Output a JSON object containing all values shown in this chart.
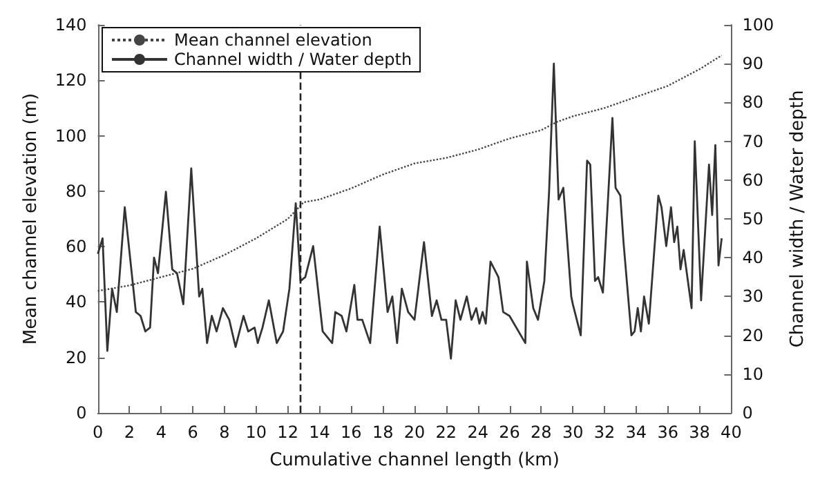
{
  "chart_data": {
    "type": "line",
    "xlabel": "Cumulative channel length (km)",
    "ylabel": "Mean channel elevation (m)",
    "y2label": "Channel width / Water depth",
    "xlim": [
      0,
      40
    ],
    "xticks": [
      0,
      2,
      4,
      6,
      8,
      10,
      12,
      14,
      16,
      18,
      20,
      22,
      24,
      26,
      28,
      30,
      32,
      34,
      36,
      38,
      40
    ],
    "ylim": [
      0,
      140
    ],
    "yticks": [
      0,
      20,
      40,
      60,
      80,
      100,
      120,
      140
    ],
    "y2lim": [
      0,
      100
    ],
    "y2ticks": [
      0,
      10,
      20,
      30,
      40,
      50,
      60,
      70,
      80,
      90,
      100
    ],
    "grid": false,
    "legend": "top left",
    "marker": "none",
    "ref_lines": [
      {
        "axis": "x",
        "value": 12.8,
        "line_style": "dashed",
        "color": "#222222"
      }
    ],
    "series": [
      {
        "name": "Mean channel elevation",
        "color": "#444444",
        "line_style": "dotted",
        "x": [
          0,
          2,
          4,
          6,
          8,
          10,
          12,
          13,
          14,
          16,
          18,
          20,
          22,
          24,
          26,
          28,
          29,
          30,
          32,
          34,
          36,
          38,
          39.4
        ],
        "values": [
          44,
          46,
          49,
          52,
          57,
          63,
          70,
          76,
          77,
          81,
          86,
          90,
          92,
          95,
          99,
          102,
          105,
          107,
          110,
          114,
          118,
          124,
          129
        ]
      },
      {
        "name": "Channel width / Water depth",
        "color": "#333333",
        "line_style": "solid",
        "axis": "y2",
        "x": [
          0,
          0.3,
          0.6,
          0.9,
          1.2,
          1.7,
          2.4,
          2.7,
          3.0,
          3.3,
          3.55,
          3.8,
          4.3,
          4.7,
          5.0,
          5.4,
          5.9,
          6.4,
          6.6,
          6.9,
          7.2,
          7.5,
          7.9,
          8.3,
          8.7,
          9.2,
          9.5,
          9.9,
          10.1,
          10.4,
          10.8,
          11.3,
          11.7,
          12.1,
          12.5,
          12.8,
          13.1,
          13.6,
          14.2,
          14.8,
          15.0,
          15.4,
          15.7,
          16.2,
          16.4,
          16.7,
          17.2,
          17.8,
          18.3,
          18.6,
          18.9,
          19.2,
          19.6,
          20.0,
          20.6,
          21.1,
          21.4,
          21.7,
          22.0,
          22.3,
          22.6,
          22.9,
          23.3,
          23.6,
          23.9,
          24.1,
          24.3,
          24.5,
          24.8,
          25.3,
          25.6,
          26.0,
          27.0,
          27.1,
          27.5,
          27.8,
          28.2,
          28.5,
          28.8,
          29.1,
          29.4,
          29.9,
          30.0,
          30.5,
          30.9,
          31.1,
          31.4,
          31.6,
          31.9,
          32.5,
          32.7,
          33.0,
          33.2,
          33.7,
          33.9,
          34.1,
          34.3,
          34.5,
          34.8,
          35.4,
          35.6,
          35.9,
          36.2,
          36.4,
          36.6,
          36.8,
          37.0,
          37.5,
          37.7,
          38.1,
          38.6,
          38.8,
          39.0,
          39.2,
          39.4
        ],
        "values": [
          41,
          45,
          16,
          32,
          26,
          53,
          26,
          25,
          21,
          22,
          40,
          36,
          57,
          37,
          36,
          28,
          63,
          30,
          32,
          18,
          25,
          21,
          27,
          24,
          17,
          25,
          21,
          22,
          18,
          22,
          29,
          18,
          21,
          32,
          54,
          34,
          35,
          43,
          21,
          18,
          26,
          25,
          21,
          33,
          24,
          24,
          18,
          48,
          26,
          30,
          18,
          32,
          26,
          24,
          44,
          25,
          29,
          24,
          24,
          14,
          29,
          24,
          30,
          24,
          27,
          23,
          26,
          23,
          39,
          35,
          26,
          25,
          18,
          39,
          27,
          24,
          34,
          57,
          90,
          55,
          58,
          30,
          28,
          20,
          65,
          64,
          34,
          35,
          31,
          76,
          58,
          56,
          44,
          20,
          21,
          27,
          21,
          30,
          23,
          56,
          53,
          43,
          53,
          44,
          48,
          37,
          42,
          27,
          70,
          29,
          64,
          51,
          69,
          38,
          45
        ]
      }
    ]
  }
}
